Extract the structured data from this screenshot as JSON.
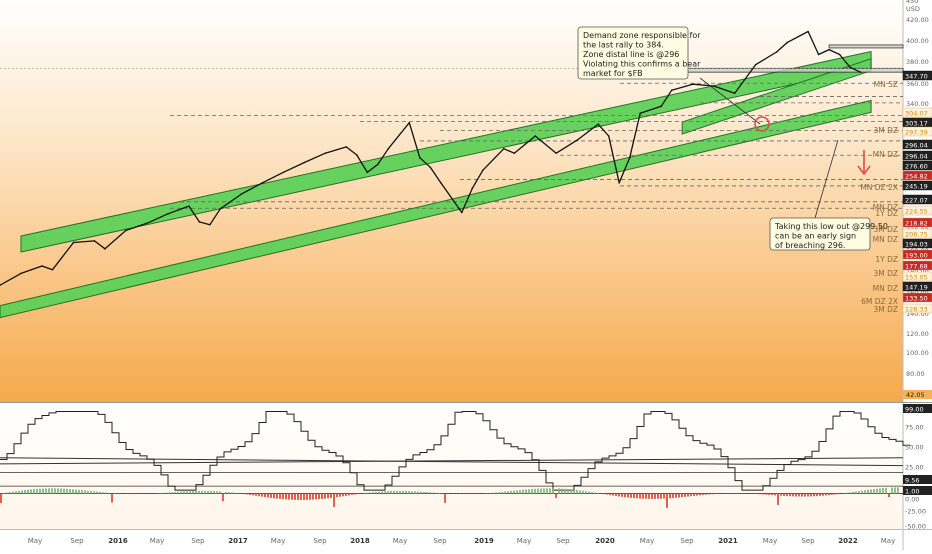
{
  "chart_data": [
    {
      "type": "line",
      "title": "",
      "ylim": [
        40,
        450
      ],
      "y_scale": "log",
      "price_axis_ticks": [
        "450",
        "USD",
        "420.00",
        "400.00",
        "380.00",
        "360.00",
        "340.00",
        "320.00",
        "300.00",
        "280.00",
        "260.00",
        "240.00",
        "220.00",
        "200.00",
        "180.00",
        "160.00",
        "140.00",
        "120.00",
        "100.00",
        "80.00",
        "60.00",
        "42.05"
      ],
      "price_labels": [
        {
          "text": "347.70",
          "color": "#222222"
        },
        {
          "text": "304.07",
          "color": "#f0a020"
        },
        {
          "text": "303.17",
          "color": "#222222"
        },
        {
          "text": "297.39",
          "color": "#f0a020"
        },
        {
          "text": "296.04",
          "color": "#222222"
        },
        {
          "text": "296.04",
          "color": "#222222"
        },
        {
          "text": "276.60",
          "color": "#222222"
        },
        {
          "text": "254.82",
          "color": "#c62828"
        },
        {
          "text": "245.19",
          "color": "#222222"
        },
        {
          "text": "227.07",
          "color": "#222222"
        },
        {
          "text": "224.55",
          "color": "#f0a020"
        },
        {
          "text": "218.82",
          "color": "#c62828"
        },
        {
          "text": "206.75",
          "color": "#f0a020"
        },
        {
          "text": "194.03",
          "color": "#222222"
        },
        {
          "text": "193.00",
          "color": "#c62828"
        },
        {
          "text": "177.68",
          "color": "#c62828"
        },
        {
          "text": "153.05",
          "color": "#f0a020"
        },
        {
          "text": "147.19",
          "color": "#222222"
        },
        {
          "text": "133.50",
          "color": "#c62828"
        },
        {
          "text": "128.33",
          "color": "#f0a020"
        }
      ],
      "zone_labels": [
        "MN 5Z",
        "3M DZ",
        "MN DZ",
        "MN DZ 2X",
        "MN DZ",
        "1Y DZ",
        "3M DZ",
        "MN DZ",
        "1Y DZ",
        "3M DZ",
        "MN DZ",
        "6M DZ 2X",
        "3M DZ"
      ],
      "annotations": [
        "Demand zone responsible for\nthe last rally to 384.\nZone distal line is @296\nViolating this confirms a bear\nmarket for $FB",
        "Taking this low out @299.50\ncan be an early sign\nof breaching 296."
      ],
      "x_tick_labels": [
        "May",
        "Sep",
        "2016",
        "May",
        "Sep",
        "2017",
        "May",
        "Sep",
        "2018",
        "May",
        "Sep",
        "2019",
        "May",
        "Sep",
        "2020",
        "May",
        "Sep",
        "2021",
        "May",
        "Sep",
        "2022",
        "May"
      ],
      "price_series": [
        [
          "2015-04",
          80
        ],
        [
          "2015-06",
          86
        ],
        [
          "2015-08",
          90
        ],
        [
          "2015-09",
          88
        ],
        [
          "2015-11",
          104
        ],
        [
          "2016-01",
          105
        ],
        [
          "2016-02",
          100
        ],
        [
          "2016-04",
          112
        ],
        [
          "2016-06",
          117
        ],
        [
          "2016-08",
          124
        ],
        [
          "2016-10",
          130
        ],
        [
          "2016-11",
          118
        ],
        [
          "2016-12",
          116
        ],
        [
          "2017-01",
          128
        ],
        [
          "2017-03",
          140
        ],
        [
          "2017-05",
          150
        ],
        [
          "2017-07",
          160
        ],
        [
          "2017-09",
          170
        ],
        [
          "2017-11",
          180
        ],
        [
          "2018-01",
          187
        ],
        [
          "2018-02",
          178
        ],
        [
          "2018-03",
          160
        ],
        [
          "2018-04",
          168
        ],
        [
          "2018-05",
          185
        ],
        [
          "2018-07",
          217
        ],
        [
          "2018-08",
          175
        ],
        [
          "2018-09",
          165
        ],
        [
          "2018-10",
          150
        ],
        [
          "2018-12",
          125
        ],
        [
          "2019-01",
          145
        ],
        [
          "2019-02",
          162
        ],
        [
          "2019-04",
          185
        ],
        [
          "2019-05",
          180
        ],
        [
          "2019-07",
          200
        ],
        [
          "2019-09",
          180
        ],
        [
          "2019-11",
          195
        ],
        [
          "2020-01",
          215
        ],
        [
          "2020-02",
          200
        ],
        [
          "2020-03",
          150
        ],
        [
          "2020-04",
          175
        ],
        [
          "2020-05",
          230
        ],
        [
          "2020-07",
          240
        ],
        [
          "2020-08",
          265
        ],
        [
          "2020-10",
          275
        ],
        [
          "2020-12",
          272
        ],
        [
          "2021-02",
          260
        ],
        [
          "2021-04",
          310
        ],
        [
          "2021-06",
          335
        ],
        [
          "2021-07",
          355
        ],
        [
          "2021-09",
          380
        ],
        [
          "2021-10",
          330
        ],
        [
          "2021-11",
          340
        ],
        [
          "2021-12",
          330
        ],
        [
          "2022-01",
          305
        ],
        [
          "2022-02",
          296
        ]
      ],
      "channels": [
        {
          "kind": "green-band",
          "from": [
            "2015-06",
            103
          ],
          "to": [
            "2022-03",
            320
          ]
        },
        {
          "kind": "green-band",
          "from": [
            "2015-04",
            68
          ],
          "to": [
            "2022-03",
            240
          ]
        },
        {
          "kind": "green-band",
          "from": [
            "2020-09",
            210
          ],
          "to": [
            "2022-03",
            310
          ]
        }
      ],
      "demand_zones": [
        {
          "label": "3M DZ",
          "range": [
            296,
            303
          ]
        },
        {
          "label": "MN 5Z",
          "range": [
            347,
            350
          ]
        }
      ]
    },
    {
      "type": "line",
      "title": "",
      "ylim": [
        -35,
        99
      ],
      "axis_ticks": [
        "99.00",
        "75.00",
        "50.00",
        "25.00",
        "9.56",
        "1.00",
        "0.00",
        "-25.00",
        "-50.00"
      ],
      "levels": [
        25,
        9.56,
        1.0
      ]
    }
  ]
}
